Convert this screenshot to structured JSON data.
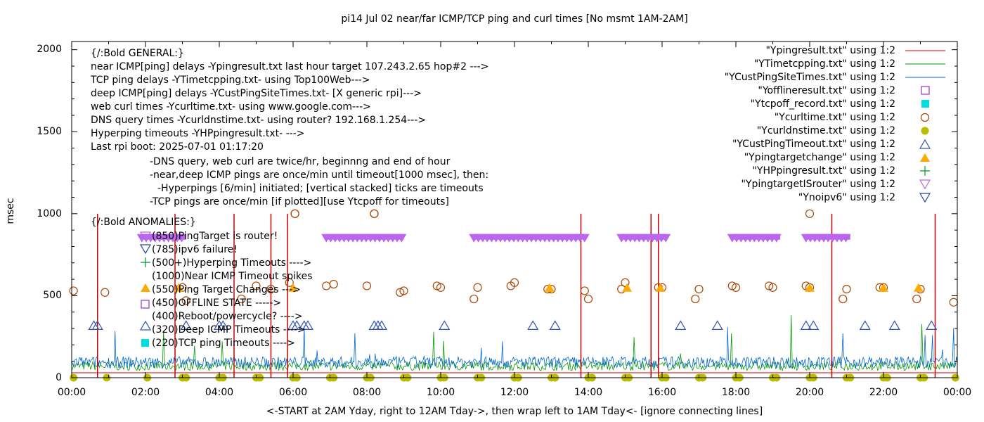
{
  "chart_data": {
    "type": "line",
    "title": "pi14 Jul 02  near/far ICMP/TCP ping and curl times [No msmt 1AM-2AM]",
    "xlabel": "<-START at 2AM Yday, right to 12AM Tday->, then wrap left to 1AM Tday<- [ignore connecting lines]",
    "ylabel": "msec",
    "xlim": [
      0,
      24
    ],
    "ylim": [
      0,
      2050
    ],
    "x_tick_labels": [
      "00:00",
      "02:00",
      "04:00",
      "06:00",
      "08:00",
      "10:00",
      "12:00",
      "14:00",
      "16:00",
      "18:00",
      "20:00",
      "22:00",
      "00:00"
    ],
    "y_tick_labels": [
      "0",
      "500",
      "1000",
      "1500",
      "2000"
    ],
    "y_tick_values": [
      0,
      500,
      1000,
      1500,
      2000
    ],
    "annotations": [
      "{/:Bold GENERAL:}",
      "near ICMP[ping] delays -Ypingresult.txt last hour target 107.243.2.65 hop#2 --->",
      "TCP ping delays -YTimetcpping.txt- using Top100Web--->",
      "deep ICMP[ping] delays -YCustPingSiteTimes.txt- [X generic rpi]--->",
      "web curl times -Ycurltime.txt- using www.google.com--->",
      "DNS query times -Ycurldnstime.txt- using router? 192.168.1.254--->",
      "Hyperping timeouts -YHPpingresult.txt- --->",
      "Last rpi boot: 2025-07-01 01:17:20",
      "-DNS query, web curl are twice/hr, beginnng and end of hour",
      "-near,deep ICMP pings are once/min until timeout[1000 msec], then:",
      "-Hyperpings [6/min] initiated; [vertical stacked] ticks are timeouts",
      "-TCP pings are once/min [if plotted][use Ytcpoff for timeouts]",
      "{/:Bold ANOMALIES:}",
      "(850)PingTarget is router!",
      "(785)ipv6 failure!",
      "(500+)Hyperping Timeouts ---->",
      "(1000)Near ICMP Timeout spikes",
      "(550)Ping Target Changes --->",
      "(450)OFFLINE STATE ----->",
      "(400)Reboot/powercycle? ---->",
      "(320)Deep ICMP Timeouts ---->",
      "(220)TCP ping Timeouts ---->"
    ],
    "legend": [
      {
        "label": "\"Ypingresult.txt\" using 1:2",
        "color": "#cc0000",
        "marker": "line"
      },
      {
        "label": "\"YTimetcpping.txt\" using 1:2",
        "color": "#009900",
        "marker": "line"
      },
      {
        "label": "\"YCustPingSiteTimes.txt\" using 1:2",
        "color": "#0066cc",
        "marker": "line"
      },
      {
        "label": "\"Yofflineresult.txt\" using 1:2",
        "color": "#9933cc",
        "marker": "open-square"
      },
      {
        "label": "\"Ytcpoff_record.txt\" using 1:2",
        "color": "#00dddd",
        "marker": "filled-square"
      },
      {
        "label": "\"Ycurltime.txt\" using 1:2",
        "color": "#aa4400",
        "marker": "open-circle"
      },
      {
        "label": "\"Ycurldnstime.txt\" using 1:2",
        "color": "#bbbb00",
        "marker": "filled-circle"
      },
      {
        "label": "\"YCustPingTimeout.txt\" using 1:2",
        "color": "#3355bb",
        "marker": "open-triangle-up"
      },
      {
        "label": "\"Ypingtargetchange\" using 1:2",
        "color": "#ffaa00",
        "marker": "filled-triangle-up"
      },
      {
        "label": "\"YHPpingresult.txt\" using 1:2",
        "color": "#009933",
        "marker": "plus"
      },
      {
        "label": "\"YpingtargetISrouter\" using 1:2",
        "color": "#bb66ee",
        "marker": "open-triangle-down"
      },
      {
        "label": "\"Ynoipv6\" using 1:2",
        "color": "#2244aa",
        "marker": "open-triangle-down"
      }
    ],
    "series": [
      {
        "name": "Ypingresult.txt (near ICMP spikes to 1000 msec)",
        "color": "#cc0000",
        "spike_x": [
          0.7,
          2.8,
          4.4,
          5.4,
          5.85,
          13.8,
          15.7,
          15.9,
          20.6,
          23.4
        ],
        "spike_y": [
          1000,
          1000,
          1000,
          1000,
          1000,
          1000,
          1000,
          1000,
          1000,
          1000
        ],
        "baseline": 30
      },
      {
        "name": "YTimetcpping.txt",
        "color": "#009900",
        "baseline": 60
      },
      {
        "name": "YCustPingSiteTimes.txt",
        "color": "#0066cc",
        "baseline": 80
      },
      {
        "name": "Ycurltime.txt",
        "color": "#aa4400",
        "x": [
          0.05,
          0.9,
          3.0,
          3.1,
          4.6,
          5.0,
          5.4,
          5.9,
          6.05,
          6.9,
          7.1,
          8.0,
          8.2,
          8.9,
          9.0,
          9.9,
          10.0,
          10.9,
          11.0,
          11.9,
          12.0,
          12.9,
          13.0,
          13.9,
          14.0,
          14.9,
          15.0,
          15.9,
          16.0,
          16.9,
          17.0,
          17.9,
          18.0,
          18.9,
          19.0,
          19.9,
          20.0,
          20.9,
          21.0,
          21.9,
          22.0,
          22.9,
          23.0,
          23.9,
          6.05,
          8.2,
          20.0
        ],
        "y": [
          530,
          520,
          550,
          470,
          480,
          560,
          540,
          580,
          1000,
          560,
          570,
          560,
          1000,
          520,
          530,
          560,
          550,
          480,
          550,
          560,
          580,
          540,
          540,
          530,
          480,
          540,
          580,
          550,
          550,
          480,
          540,
          560,
          550,
          560,
          550,
          560,
          550,
          480,
          540,
          550,
          550,
          480,
          540,
          460,
          1000,
          1000,
          1000
        ]
      },
      {
        "name": "Ycurldnstime.txt",
        "color": "#bbbb00",
        "x": [
          0.05,
          0.95,
          2.05,
          3.0,
          3.1,
          4.0,
          4.1,
          5.0,
          5.1,
          6.0,
          6.1,
          7.0,
          7.1,
          8.0,
          8.1,
          9.0,
          9.1,
          10.0,
          10.1,
          11.0,
          11.1,
          12.0,
          12.1,
          13.0,
          13.1,
          14.0,
          14.1,
          15.0,
          15.1,
          16.0,
          16.1,
          17.0,
          17.1,
          18.0,
          18.1,
          19.0,
          19.1,
          20.0,
          20.1,
          21.0,
          21.1,
          22.0,
          22.1,
          23.0,
          23.1,
          23.95
        ],
        "y": [
          0,
          0,
          0,
          0,
          0,
          0,
          0,
          0,
          0,
          0,
          0,
          0,
          0,
          0,
          0,
          0,
          0,
          0,
          0,
          0,
          0,
          0,
          0,
          0,
          0,
          0,
          0,
          0,
          0,
          0,
          0,
          0,
          0,
          0,
          0,
          0,
          0,
          0,
          0,
          0,
          0,
          0,
          0,
          0,
          0,
          0
        ]
      },
      {
        "name": "YCustPingTimeout.txt",
        "color": "#3355bb",
        "x": [
          0.6,
          0.7,
          3.1,
          4.0,
          4.1,
          6.0,
          6.1,
          6.3,
          6.4,
          8.2,
          8.3,
          8.4,
          10.1,
          12.5,
          13.1,
          16.5,
          17.5,
          19.9,
          20.1,
          21.5,
          22.3,
          23.3
        ],
        "y": [
          320,
          320,
          320,
          320,
          320,
          320,
          320,
          320,
          320,
          320,
          320,
          320,
          320,
          320,
          320,
          320,
          320,
          320,
          320,
          320,
          320,
          320
        ]
      },
      {
        "name": "Ypingtargetchange",
        "color": "#ffaa00",
        "x": [
          2.9,
          6.0,
          12.95,
          15.05,
          15.95,
          20.0,
          22.0,
          22.95
        ],
        "y": [
          550,
          550,
          550,
          550,
          550,
          550,
          550,
          550
        ]
      },
      {
        "name": "YpingtargetISrouter",
        "color": "#bb66ee",
        "ranges": [
          [
            1.9,
            3.1
          ],
          [
            6.9,
            9.0
          ],
          [
            10.9,
            13.9
          ],
          [
            14.9,
            16.1
          ],
          [
            17.9,
            19.2
          ],
          [
            19.9,
            21.1
          ]
        ],
        "y": 850
      }
    ]
  }
}
